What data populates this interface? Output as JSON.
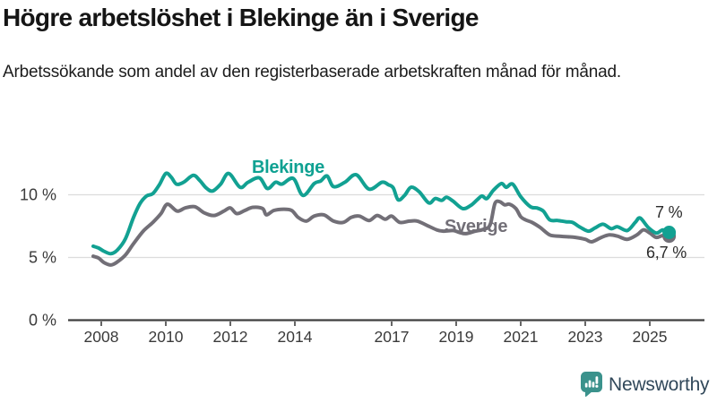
{
  "header": {
    "title": "Högre arbetslöshet i Blekinge än i Sverige",
    "subtitle": "Arbetssökande som andel av den registerbaserade arbetskraften månad för månad."
  },
  "chart_data": {
    "type": "line",
    "unit": "%",
    "grid": "horizontal-only",
    "x_ticks": [
      2008,
      2010,
      2012,
      2014,
      2017,
      2019,
      2021,
      2023,
      2025
    ],
    "y_ticks": [
      0,
      5,
      10
    ],
    "y_tick_suffix": " %",
    "xlim": [
      2007.0,
      2026.6
    ],
    "ylim": [
      0,
      12.6
    ],
    "axis_color": "#3F3F3F",
    "grid_color": "#DCDCDC",
    "tick_label_color": "#3A3A3A",
    "series": [
      {
        "name": "Sverige",
        "color": "#726F77",
        "end_label": "6,7 %",
        "end_value": 6.7,
        "points": [
          [
            2007.75,
            5.1
          ],
          [
            2007.92,
            4.95
          ],
          [
            2008.08,
            4.6
          ],
          [
            2008.3,
            4.4
          ],
          [
            2008.5,
            4.65
          ],
          [
            2008.75,
            5.2
          ],
          [
            2009.0,
            6.1
          ],
          [
            2009.3,
            7.1
          ],
          [
            2009.6,
            7.8
          ],
          [
            2009.85,
            8.5
          ],
          [
            2010.05,
            9.25
          ],
          [
            2010.35,
            8.7
          ],
          [
            2010.6,
            8.95
          ],
          [
            2010.9,
            9.05
          ],
          [
            2011.2,
            8.55
          ],
          [
            2011.5,
            8.35
          ],
          [
            2011.8,
            8.7
          ],
          [
            2012.0,
            8.95
          ],
          [
            2012.2,
            8.5
          ],
          [
            2012.45,
            8.75
          ],
          [
            2012.7,
            9.0
          ],
          [
            2013.0,
            8.9
          ],
          [
            2013.12,
            8.4
          ],
          [
            2013.35,
            8.75
          ],
          [
            2013.65,
            8.85
          ],
          [
            2013.9,
            8.75
          ],
          [
            2014.1,
            8.2
          ],
          [
            2014.35,
            7.9
          ],
          [
            2014.6,
            8.3
          ],
          [
            2014.9,
            8.4
          ],
          [
            2015.2,
            7.9
          ],
          [
            2015.5,
            7.8
          ],
          [
            2015.75,
            8.2
          ],
          [
            2016.0,
            8.3
          ],
          [
            2016.3,
            7.95
          ],
          [
            2016.55,
            8.35
          ],
          [
            2016.8,
            8.05
          ],
          [
            2017.0,
            8.3
          ],
          [
            2017.25,
            7.8
          ],
          [
            2017.55,
            7.9
          ],
          [
            2017.8,
            7.9
          ],
          [
            2018.1,
            7.55
          ],
          [
            2018.4,
            7.2
          ],
          [
            2018.6,
            7.1
          ],
          [
            2018.9,
            7.15
          ],
          [
            2019.1,
            7.0
          ],
          [
            2019.3,
            6.9
          ],
          [
            2019.6,
            7.1
          ],
          [
            2019.85,
            7.25
          ],
          [
            2020.05,
            7.6
          ],
          [
            2020.2,
            9.3
          ],
          [
            2020.35,
            9.45
          ],
          [
            2020.5,
            9.2
          ],
          [
            2020.65,
            9.25
          ],
          [
            2020.85,
            8.9
          ],
          [
            2021.0,
            8.25
          ],
          [
            2021.15,
            8.0
          ],
          [
            2021.35,
            7.8
          ],
          [
            2021.6,
            7.4
          ],
          [
            2021.9,
            6.8
          ],
          [
            2022.2,
            6.7
          ],
          [
            2022.45,
            6.65
          ],
          [
            2022.7,
            6.6
          ],
          [
            2023.0,
            6.45
          ],
          [
            2023.2,
            6.25
          ],
          [
            2023.5,
            6.6
          ],
          [
            2023.75,
            6.8
          ],
          [
            2024.0,
            6.7
          ],
          [
            2024.3,
            6.45
          ],
          [
            2024.6,
            6.8
          ],
          [
            2024.8,
            7.2
          ],
          [
            2025.0,
            6.95
          ],
          [
            2025.2,
            6.6
          ],
          [
            2025.4,
            6.75
          ],
          [
            2025.6,
            6.7
          ]
        ]
      },
      {
        "name": "Blekinge",
        "color": "#12A192",
        "end_label": "7 %",
        "end_value": 7.0,
        "points": [
          [
            2007.75,
            5.9
          ],
          [
            2007.92,
            5.75
          ],
          [
            2008.08,
            5.5
          ],
          [
            2008.3,
            5.3
          ],
          [
            2008.5,
            5.6
          ],
          [
            2008.75,
            6.5
          ],
          [
            2009.0,
            8.2
          ],
          [
            2009.2,
            9.3
          ],
          [
            2009.4,
            9.9
          ],
          [
            2009.6,
            10.1
          ],
          [
            2009.8,
            10.8
          ],
          [
            2010.0,
            11.7
          ],
          [
            2010.17,
            11.4
          ],
          [
            2010.33,
            10.85
          ],
          [
            2010.55,
            11.0
          ],
          [
            2010.85,
            11.55
          ],
          [
            2011.05,
            11.15
          ],
          [
            2011.25,
            10.55
          ],
          [
            2011.45,
            10.3
          ],
          [
            2011.7,
            10.85
          ],
          [
            2011.95,
            11.7
          ],
          [
            2012.3,
            10.6
          ],
          [
            2012.55,
            11.0
          ],
          [
            2012.9,
            11.35
          ],
          [
            2013.15,
            10.5
          ],
          [
            2013.4,
            11.0
          ],
          [
            2013.6,
            10.85
          ],
          [
            2013.95,
            11.3
          ],
          [
            2014.25,
            9.95
          ],
          [
            2014.6,
            10.9
          ],
          [
            2014.8,
            11.1
          ],
          [
            2015.0,
            11.5
          ],
          [
            2015.2,
            10.65
          ],
          [
            2015.55,
            11.0
          ],
          [
            2015.9,
            11.6
          ],
          [
            2016.3,
            10.45
          ],
          [
            2016.7,
            11.0
          ],
          [
            2016.9,
            10.8
          ],
          [
            2017.05,
            10.55
          ],
          [
            2017.2,
            9.6
          ],
          [
            2017.4,
            9.95
          ],
          [
            2017.6,
            10.6
          ],
          [
            2017.85,
            10.25
          ],
          [
            2018.15,
            9.35
          ],
          [
            2018.35,
            9.7
          ],
          [
            2018.55,
            9.55
          ],
          [
            2018.7,
            9.8
          ],
          [
            2018.9,
            9.5
          ],
          [
            2019.2,
            8.9
          ],
          [
            2019.45,
            9.15
          ],
          [
            2019.65,
            9.6
          ],
          [
            2019.8,
            9.9
          ],
          [
            2019.95,
            9.7
          ],
          [
            2020.15,
            10.35
          ],
          [
            2020.4,
            10.9
          ],
          [
            2020.55,
            10.6
          ],
          [
            2020.75,
            10.85
          ],
          [
            2021.0,
            9.85
          ],
          [
            2021.3,
            9.05
          ],
          [
            2021.5,
            8.95
          ],
          [
            2021.7,
            8.7
          ],
          [
            2021.9,
            8.0
          ],
          [
            2022.15,
            7.95
          ],
          [
            2022.4,
            7.85
          ],
          [
            2022.6,
            7.8
          ],
          [
            2022.85,
            7.4
          ],
          [
            2023.1,
            7.1
          ],
          [
            2023.3,
            7.35
          ],
          [
            2023.55,
            7.65
          ],
          [
            2023.8,
            7.3
          ],
          [
            2024.0,
            7.45
          ],
          [
            2024.3,
            7.15
          ],
          [
            2024.55,
            7.8
          ],
          [
            2024.7,
            8.15
          ],
          [
            2024.95,
            7.4
          ],
          [
            2025.2,
            6.95
          ],
          [
            2025.4,
            7.2
          ],
          [
            2025.6,
            7.0
          ]
        ]
      }
    ]
  },
  "footer": {
    "brand": "Newsworthy",
    "logo_icon": "newsworthy-speech-bubble-bar-chart-icon",
    "logo_color": "#3B928C",
    "brand_text_color": "#31485A"
  }
}
